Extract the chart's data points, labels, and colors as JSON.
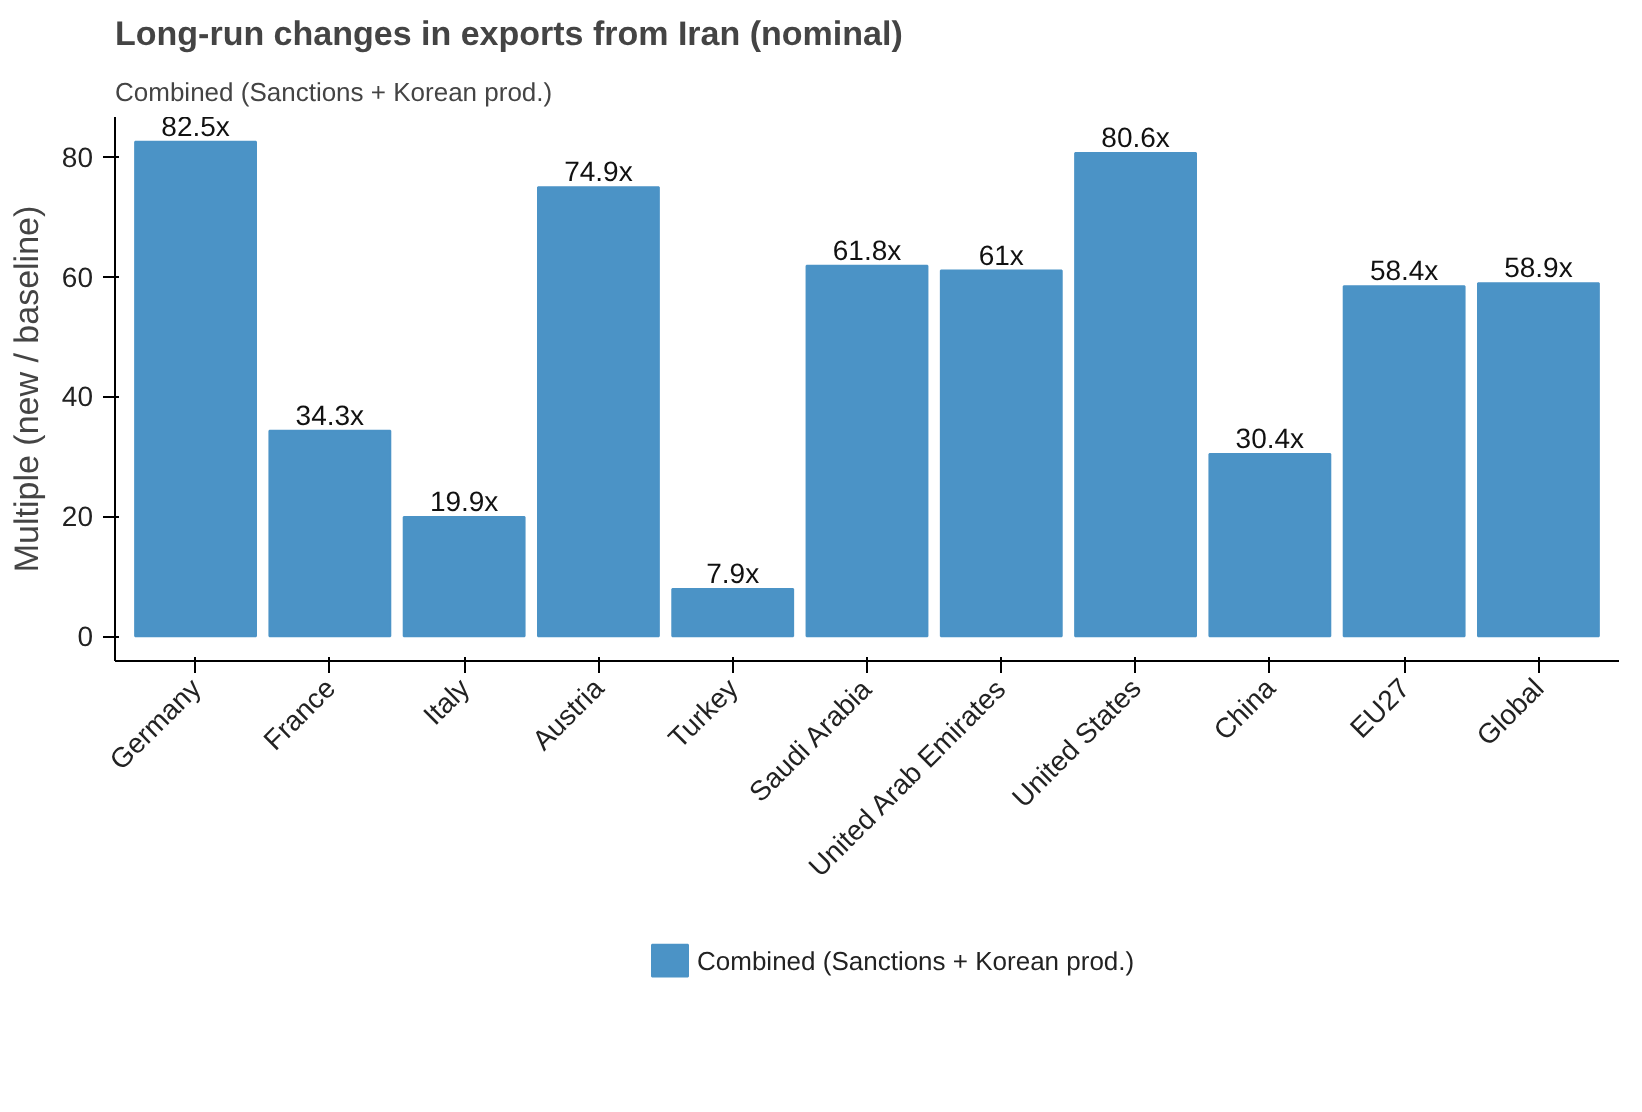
{
  "chart_data": {
    "type": "bar",
    "title": "Long-run changes in exports from Iran (nominal)",
    "subtitle": "Combined (Sanctions + Korean prod.)",
    "ylabel": "Multiple (new / baseline)",
    "categories": [
      "Germany",
      "France",
      "Italy",
      "Austria",
      "Turkey",
      "Saudi Arabia",
      "United Arab Emirates",
      "United States",
      "China",
      "EU27",
      "Global"
    ],
    "series": [
      {
        "name": "Combined (Sanctions + Korean prod.)",
        "color": "#4b93c6",
        "values": [
          82.5,
          34.3,
          19.9,
          74.9,
          7.9,
          61.8,
          61,
          80.6,
          30.4,
          58.4,
          58.9
        ],
        "value_labels": [
          "82.5x",
          "34.3x",
          "19.9x",
          "74.9x",
          "7.9x",
          "61.8x",
          "61x",
          "80.6x",
          "30.4x",
          "58.4x",
          "58.9x"
        ]
      }
    ],
    "ylim": [
      -4.125,
      86.625
    ],
    "yticks": [
      0,
      20,
      40,
      60,
      80
    ],
    "legend": "bottom"
  }
}
